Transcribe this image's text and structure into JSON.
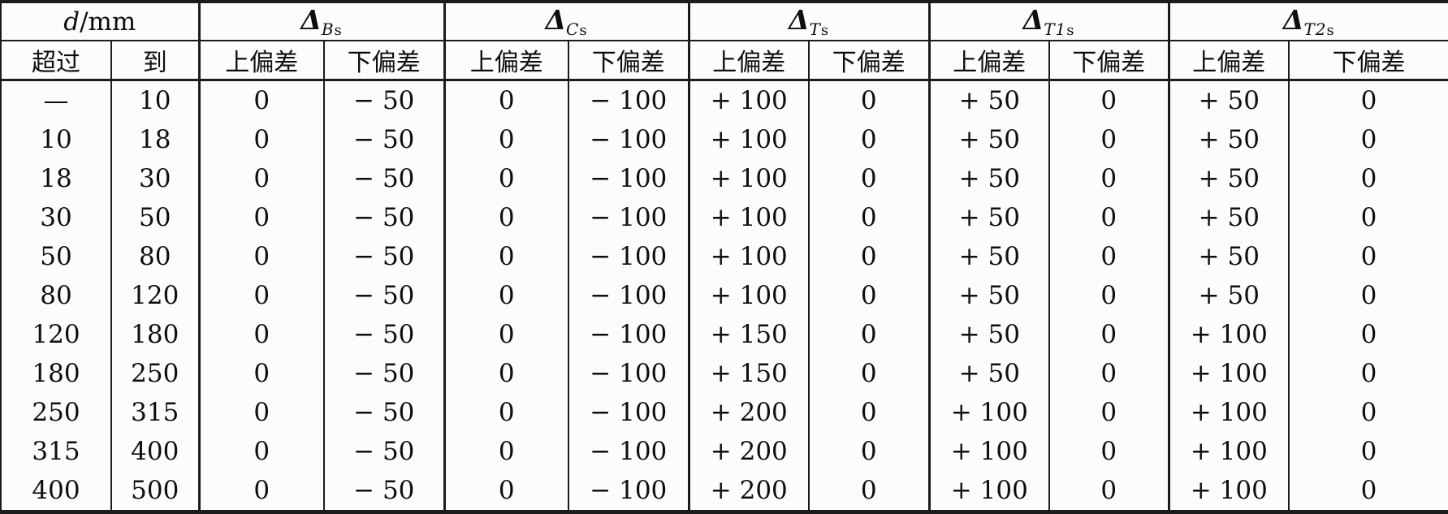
{
  "table": {
    "unit_header": {
      "italic": "d",
      "rest": "/mm"
    },
    "delta_groups": [
      {
        "symbol": "Δ",
        "sub_italic": "B",
        "sub_roman": "s"
      },
      {
        "symbol": "Δ",
        "sub_italic": "C",
        "sub_roman": "s"
      },
      {
        "symbol": "Δ",
        "sub_italic": "T",
        "sub_roman": "s"
      },
      {
        "symbol": "Δ",
        "sub_italic": "T1",
        "sub_roman": "s"
      },
      {
        "symbol": "Δ",
        "sub_italic": "T2",
        "sub_roman": "s"
      }
    ],
    "subheaders": {
      "over": "超过",
      "to": "到",
      "upper_dev": "上偏差",
      "lower_dev": "下偏差"
    },
    "rows": [
      [
        "—",
        "10",
        "0",
        "− 50",
        "0",
        "− 100",
        "+ 100",
        "0",
        "+ 50",
        "0",
        "+ 50",
        "0"
      ],
      [
        "10",
        "18",
        "0",
        "− 50",
        "0",
        "− 100",
        "+ 100",
        "0",
        "+ 50",
        "0",
        "+ 50",
        "0"
      ],
      [
        "18",
        "30",
        "0",
        "− 50",
        "0",
        "− 100",
        "+ 100",
        "0",
        "+ 50",
        "0",
        "+ 50",
        "0"
      ],
      [
        "30",
        "50",
        "0",
        "− 50",
        "0",
        "− 100",
        "+ 100",
        "0",
        "+ 50",
        "0",
        "+ 50",
        "0"
      ],
      [
        "50",
        "80",
        "0",
        "− 50",
        "0",
        "− 100",
        "+ 100",
        "0",
        "+ 50",
        "0",
        "+ 50",
        "0"
      ],
      [
        "80",
        "120",
        "0",
        "− 50",
        "0",
        "− 100",
        "+ 100",
        "0",
        "+ 50",
        "0",
        "+ 50",
        "0"
      ],
      [
        "120",
        "180",
        "0",
        "− 50",
        "0",
        "− 100",
        "+ 150",
        "0",
        "+ 50",
        "0",
        "+ 100",
        "0"
      ],
      [
        "180",
        "250",
        "0",
        "− 50",
        "0",
        "− 100",
        "+ 150",
        "0",
        "+ 50",
        "0",
        "+ 100",
        "0"
      ],
      [
        "250",
        "315",
        "0",
        "− 50",
        "0",
        "− 100",
        "+ 200",
        "0",
        "+ 100",
        "0",
        "+ 100",
        "0"
      ],
      [
        "315",
        "400",
        "0",
        "− 50",
        "0",
        "− 100",
        "+ 200",
        "0",
        "+ 100",
        "0",
        "+ 100",
        "0"
      ],
      [
        "400",
        "500",
        "0",
        "− 50",
        "0",
        "− 100",
        "+ 200",
        "0",
        "+ 100",
        "0",
        "+ 100",
        "0"
      ]
    ]
  },
  "colors": {
    "border": "#1c1c1c",
    "text": "#0e0e0e",
    "background": "#fcfcfc"
  }
}
